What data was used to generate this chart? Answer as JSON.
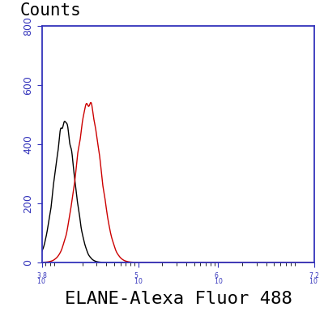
{
  "title_ylabel": "Counts",
  "xlabel": "ELANE-Alexa Fluor 488",
  "xlim_log": [
    3.8,
    7.2
  ],
  "ylim": [
    0,
    800
  ],
  "yticks": [
    0,
    200,
    400,
    600,
    800
  ],
  "xticks_log": [
    3.8,
    5.0,
    6.0,
    7.2
  ],
  "black_peak_log": 4.08,
  "black_peak_height": 475,
  "black_sigma_log": 0.125,
  "red_peak_log": 4.38,
  "red_peak_height": 540,
  "red_sigma_log": 0.15,
  "line_color_black": "#000000",
  "line_color_red": "#cc0000",
  "spine_color": "#3333bb",
  "tick_color": "#3333bb",
  "label_color": "#3333bb",
  "background_color": "#ffffff",
  "counts_color": "#000000",
  "xlabel_color": "#000000",
  "counts_fontsize": 15,
  "xlabel_fontsize": 16,
  "ytick_fontsize": 9,
  "xtick_fontsize": 8
}
